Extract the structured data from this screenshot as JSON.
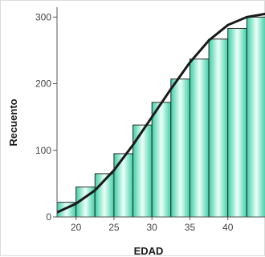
{
  "chart_data": {
    "type": "bar",
    "title": "",
    "xlabel": "EDAD",
    "ylabel": "Recuento",
    "x_ticks": [
      "20",
      "25",
      "30",
      "35",
      "40"
    ],
    "y_ticks": [
      "0",
      "100",
      "200",
      "300"
    ],
    "xlim": [
      17.5,
      45
    ],
    "ylim": [
      0,
      310
    ],
    "bin_width": 2.5,
    "bins": [
      {
        "start": 17.5,
        "value": 22
      },
      {
        "start": 20,
        "value": 45
      },
      {
        "start": 22.5,
        "value": 65
      },
      {
        "start": 25,
        "value": 95
      },
      {
        "start": 27.5,
        "value": 138
      },
      {
        "start": 30,
        "value": 172
      },
      {
        "start": 32.5,
        "value": 207
      },
      {
        "start": 35,
        "value": 237
      },
      {
        "start": 37.5,
        "value": 267
      },
      {
        "start": 40,
        "value": 283
      },
      {
        "start": 42.5,
        "value": 300
      }
    ],
    "curve": {
      "x": [
        17.5,
        20,
        22.5,
        25,
        27.5,
        30,
        32.5,
        35,
        37.5,
        40,
        42.5,
        45
      ],
      "y": [
        7,
        20,
        40,
        70,
        108,
        150,
        192,
        232,
        265,
        288,
        300,
        305
      ]
    },
    "colors": {
      "bar_edge": "#3dcfa6",
      "bar_center": "#ecfff8",
      "curve": "#1a1a1a",
      "axis": "#555555"
    }
  }
}
